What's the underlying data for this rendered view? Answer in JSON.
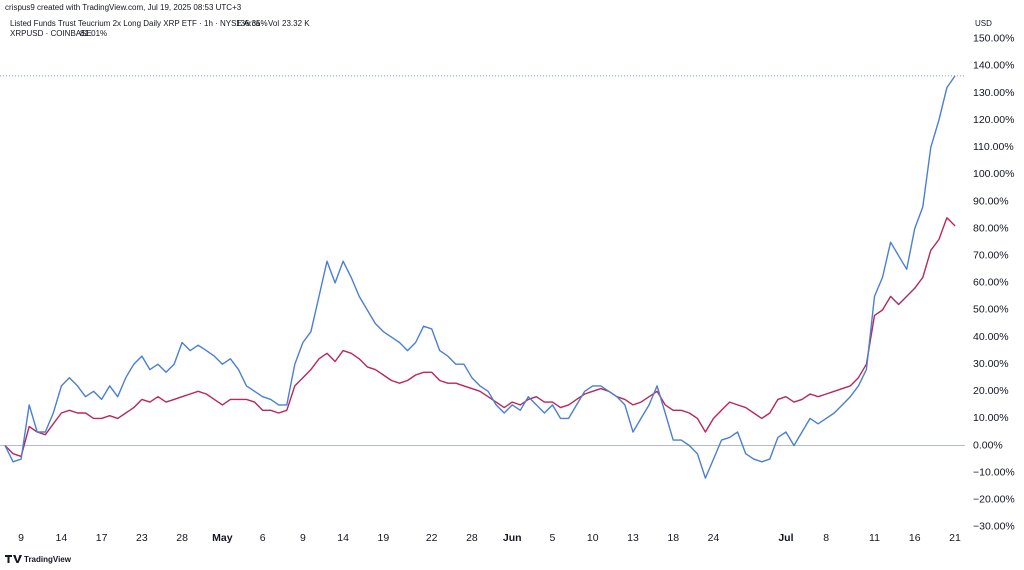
{
  "header": {
    "credit": "crispus9 created with TradingView.com, Jul 19, 2025 08:53 UTC+3",
    "volume_label": "Vol",
    "volume": "23.32 K",
    "currency": "USD",
    "brand": "TradingView"
  },
  "chart_data": {
    "type": "line",
    "categories": [
      null,
      null,
      "9",
      null,
      null,
      null,
      null,
      "14",
      null,
      null,
      null,
      null,
      "17",
      null,
      null,
      null,
      null,
      "23",
      null,
      null,
      null,
      null,
      "28",
      null,
      null,
      null,
      null,
      "May",
      null,
      null,
      null,
      null,
      "6",
      null,
      null,
      null,
      null,
      "9",
      null,
      null,
      null,
      null,
      "14",
      null,
      null,
      null,
      null,
      "19",
      null,
      null,
      null,
      null,
      null,
      "22",
      null,
      null,
      null,
      null,
      "28",
      null,
      null,
      null,
      null,
      "Jun",
      null,
      null,
      null,
      null,
      "5",
      null,
      null,
      null,
      null,
      "10",
      null,
      null,
      null,
      null,
      "13",
      null,
      null,
      null,
      null,
      "18",
      null,
      null,
      null,
      null,
      "24",
      null,
      null,
      null,
      null,
      null,
      null,
      null,
      null,
      "Jul",
      null,
      null,
      null,
      null,
      "8",
      null,
      null,
      null,
      null,
      null,
      "11",
      null,
      null,
      null,
      null,
      "16",
      null,
      null,
      null,
      null,
      "21"
    ],
    "series": [
      {
        "name": "Listed Funds Trust Teucrium 2x Long Daily XRP ETF · 1h · NYSE Arca",
        "legend_value": "136.35%",
        "color": "#4a7fd4",
        "values": [
          0,
          -6,
          -5,
          15,
          5,
          5,
          12,
          22,
          25,
          22,
          18,
          20,
          17,
          22,
          18,
          25,
          30,
          33,
          28,
          30,
          27,
          30,
          38,
          35,
          37,
          35,
          33,
          30,
          32,
          28,
          22,
          20,
          18,
          17,
          15,
          15,
          30,
          38,
          42,
          55,
          68,
          60,
          68,
          62,
          55,
          50,
          45,
          42,
          40,
          38,
          35,
          38,
          44,
          43,
          35,
          33,
          30,
          30,
          25,
          22,
          20,
          15,
          12,
          15,
          13,
          18,
          15,
          12,
          15,
          10,
          10,
          15,
          20,
          22,
          22,
          20,
          18,
          15,
          5,
          10,
          15,
          22,
          12,
          2,
          2,
          0,
          -3,
          -12,
          -5,
          2,
          3,
          5,
          -3,
          -5,
          -6,
          -5,
          3,
          5,
          0,
          5,
          10,
          8,
          10,
          12,
          15,
          18,
          22,
          28,
          55,
          62,
          75,
          70,
          65,
          80,
          88,
          110,
          120,
          132,
          136.35
        ]
      },
      {
        "name": "XRPUSD · COINBASE",
        "legend_value": "81.01%",
        "color": "#b8275e",
        "values": [
          0,
          -3,
          -4,
          7,
          5,
          4,
          8,
          12,
          13,
          12,
          12,
          10,
          10,
          11,
          10,
          12,
          14,
          17,
          16,
          18,
          16,
          17,
          18,
          19,
          20,
          19,
          17,
          15,
          17,
          17,
          17,
          16,
          13,
          13,
          12,
          13,
          22,
          25,
          28,
          32,
          34,
          31,
          35,
          34,
          32,
          29,
          28,
          26,
          24,
          23,
          24,
          26,
          27,
          27,
          24,
          23,
          23,
          22,
          21,
          20,
          18,
          16,
          14,
          16,
          15,
          17,
          18,
          16,
          16,
          14,
          15,
          17,
          19,
          20,
          21,
          20,
          18,
          17,
          15,
          16,
          18,
          20,
          15,
          13,
          13,
          12,
          10,
          5,
          10,
          13,
          16,
          15,
          14,
          12,
          10,
          12,
          17,
          18,
          16,
          17,
          19,
          18,
          19,
          20,
          21,
          22,
          25,
          30,
          48,
          50,
          55,
          52,
          55,
          58,
          62,
          72,
          76,
          84,
          81.01
        ]
      }
    ],
    "ylim": [
      -33,
      154
    ],
    "yticks": [
      {
        "value": 150,
        "label": "150.00%"
      },
      {
        "value": 140,
        "label": "140.00%"
      },
      {
        "value": 130,
        "label": "130.00%"
      },
      {
        "value": 120,
        "label": "120.00%"
      },
      {
        "value": 110,
        "label": "110.00%"
      },
      {
        "value": 100,
        "label": "100.00%"
      },
      {
        "value": 90,
        "label": "90.00%"
      },
      {
        "value": 80,
        "label": "80.00%"
      },
      {
        "value": 70,
        "label": "70.00%"
      },
      {
        "value": 60,
        "label": "60.00%"
      },
      {
        "value": 50,
        "label": "50.00%"
      },
      {
        "value": 40,
        "label": "40.00%"
      },
      {
        "value": 30,
        "label": "30.00%"
      },
      {
        "value": 20,
        "label": "20.00%"
      },
      {
        "value": 10,
        "label": "10.00%"
      },
      {
        "value": 0,
        "label": "0.00%"
      },
      {
        "value": -10,
        "label": "−10.00%"
      },
      {
        "value": -20,
        "label": "−20.00%"
      },
      {
        "value": -30,
        "label": "−30.00%"
      }
    ],
    "grid": false
  }
}
